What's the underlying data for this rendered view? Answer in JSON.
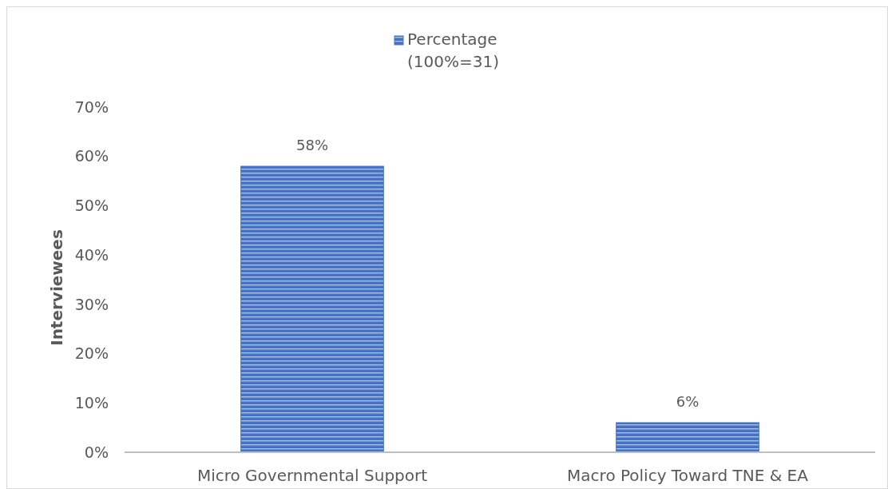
{
  "chart_data": {
    "type": "bar",
    "ylabel": "Interviewees",
    "categories": [
      "Micro Governmental Support",
      "Macro Policy Toward TNE & EA"
    ],
    "series": [
      {
        "name": "Percentage (100%=31)",
        "color": "#4472c4",
        "values": [
          58,
          6
        ],
        "value_labels": [
          "58%",
          "6%"
        ]
      }
    ],
    "ylim": [
      0,
      70
    ],
    "yticks": [
      {
        "value": 0,
        "label": "0%"
      },
      {
        "value": 10,
        "label": "10%"
      },
      {
        "value": 20,
        "label": "20%"
      },
      {
        "value": 30,
        "label": "30%"
      },
      {
        "value": 40,
        "label": "40%"
      },
      {
        "value": 50,
        "label": "50%"
      },
      {
        "value": 60,
        "label": "60%"
      },
      {
        "value": 70,
        "label": "70%"
      }
    ],
    "grid": false,
    "legend": "top"
  }
}
